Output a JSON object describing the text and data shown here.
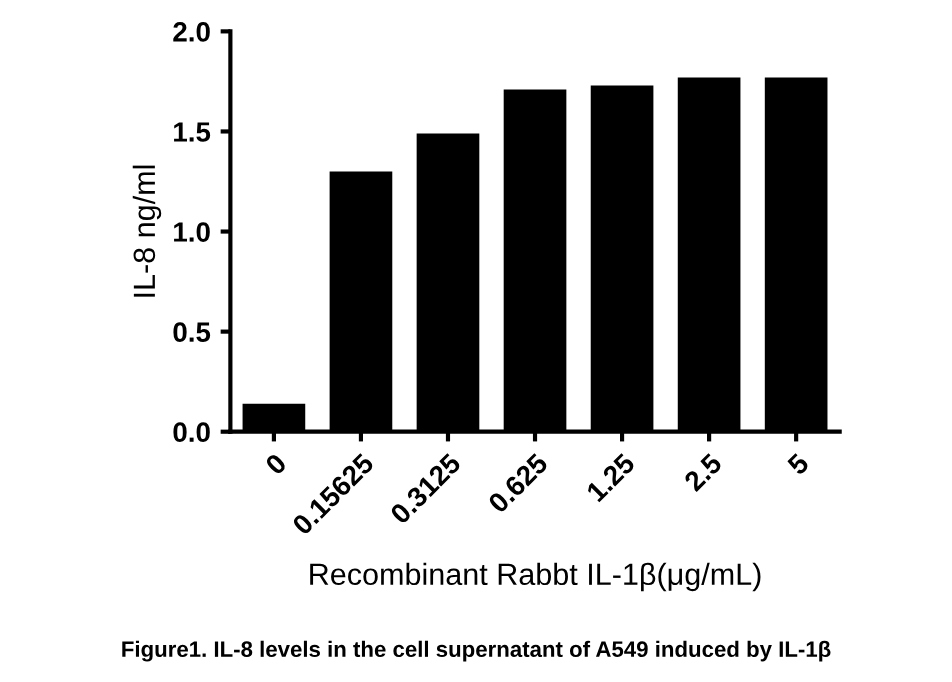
{
  "chart_data": {
    "type": "bar",
    "categories": [
      "0",
      "0.15625",
      "0.3125",
      "0.625",
      "1.25",
      "2.5",
      "5"
    ],
    "values": [
      0.14,
      1.3,
      1.49,
      1.71,
      1.73,
      1.77,
      1.77
    ],
    "color": "#000000",
    "ylim": [
      0,
      2.0
    ],
    "yticks": [
      {
        "value": 0,
        "label": "0.0"
      },
      {
        "value": 0.5,
        "label": "0.5"
      },
      {
        "value": 1.0,
        "label": "1.0"
      },
      {
        "value": 1.5,
        "label": "1.5"
      },
      {
        "value": 2.0,
        "label": "2.0"
      }
    ],
    "ylabel": "IL-8 ng/ml",
    "xlabel": "Recombinant Rabbt IL-1β(μg/mL)",
    "annotations": [
      "Figure1. IL-8 levels in the cell supernatant of A549 induced by IL-1β"
    ],
    "grid": false
  }
}
